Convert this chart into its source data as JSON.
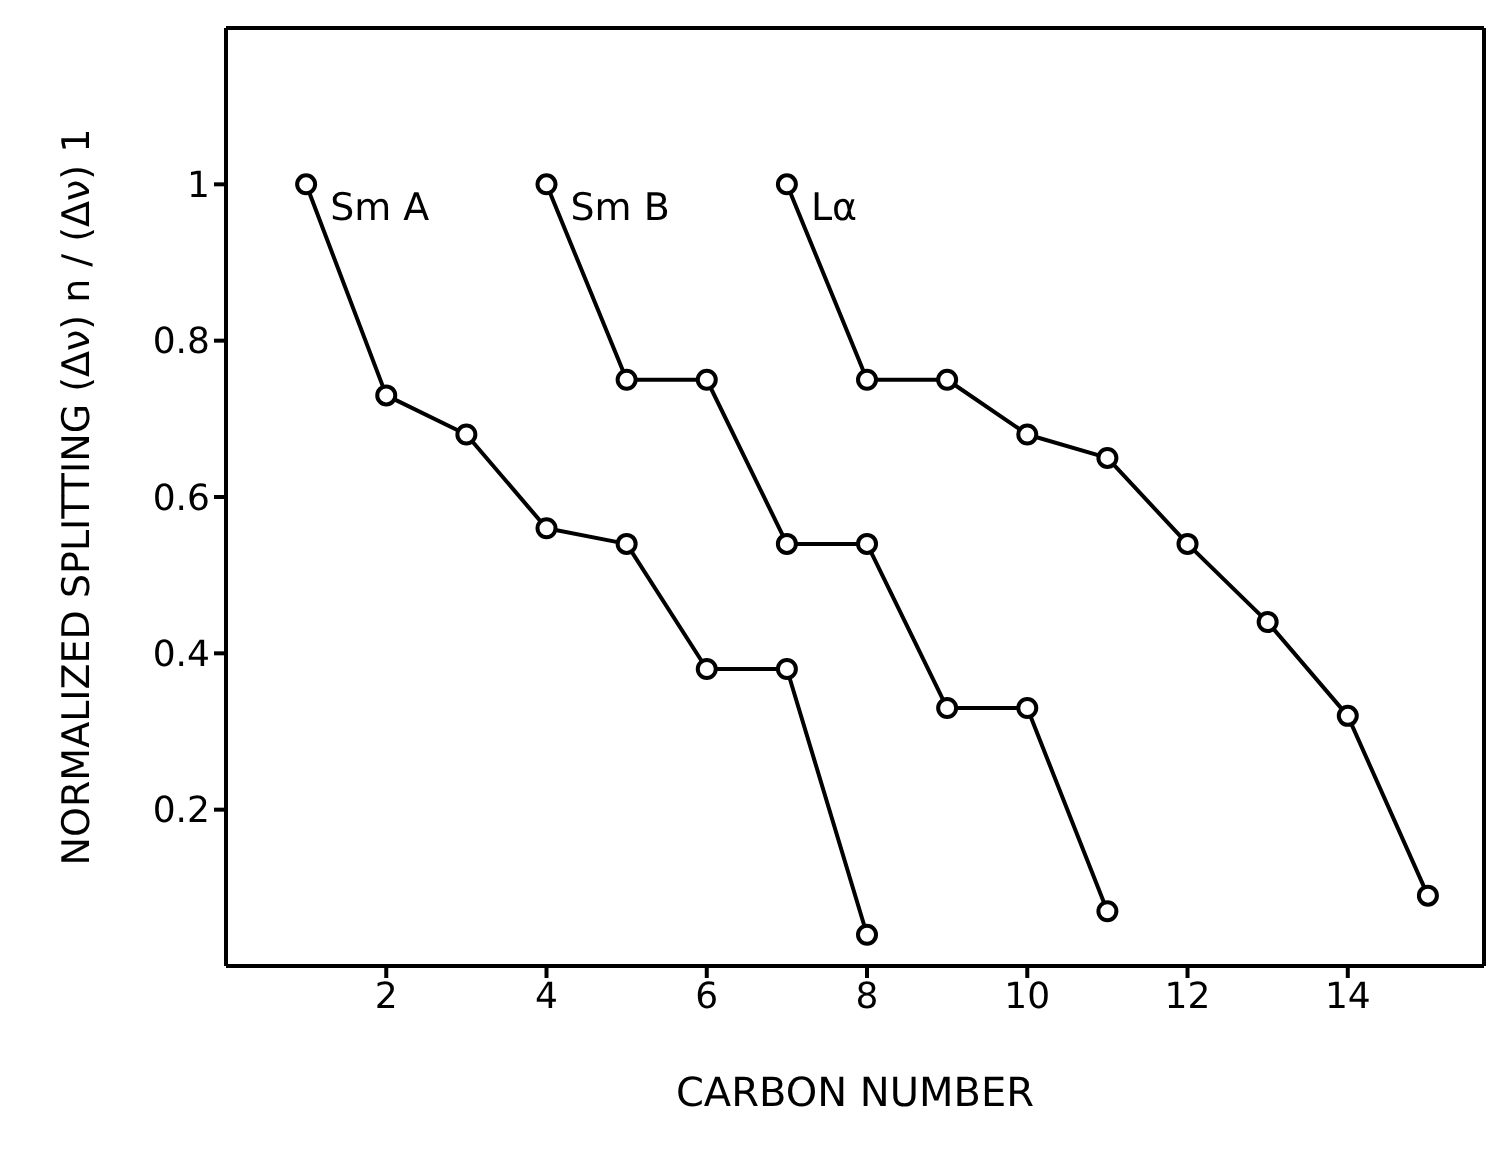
{
  "chart_data": {
    "type": "line",
    "xlabel": "CARBON  NUMBER",
    "ylabel": "NORMALIZED  SPLITTING  (Δν) n / (Δν) 1",
    "xlim": [
      0,
      15.7
    ],
    "ylim": [
      0,
      1.2
    ],
    "xticks": [
      2,
      4,
      6,
      8,
      10,
      12,
      14
    ],
    "yticks": [
      0.2,
      0.4,
      0.6,
      0.8,
      {
        "value": 1,
        "label": "1"
      }
    ],
    "marker": "circle",
    "line_style": "solid",
    "series": [
      {
        "name": "Sm A",
        "color": "#000000",
        "x": [
          1,
          2,
          3,
          4,
          5,
          6,
          7,
          8
        ],
        "values": [
          1,
          0.73,
          0.68,
          0.56,
          0.54,
          0.38,
          0.38,
          0.04
        ]
      },
      {
        "name": "Sm B",
        "color": "#000000",
        "x": [
          4,
          5,
          6,
          7,
          8,
          9,
          10,
          11
        ],
        "values": [
          1,
          0.75,
          0.75,
          0.54,
          0.54,
          0.33,
          0.33,
          0.07
        ]
      },
      {
        "name": "Lα",
        "color": "#000000",
        "x": [
          7,
          8,
          9,
          10,
          11,
          12,
          13,
          14,
          15
        ],
        "values": [
          1,
          0.75,
          0.75,
          0.68,
          0.65,
          0.54,
          0.44,
          0.32,
          0.09
        ]
      }
    ]
  }
}
